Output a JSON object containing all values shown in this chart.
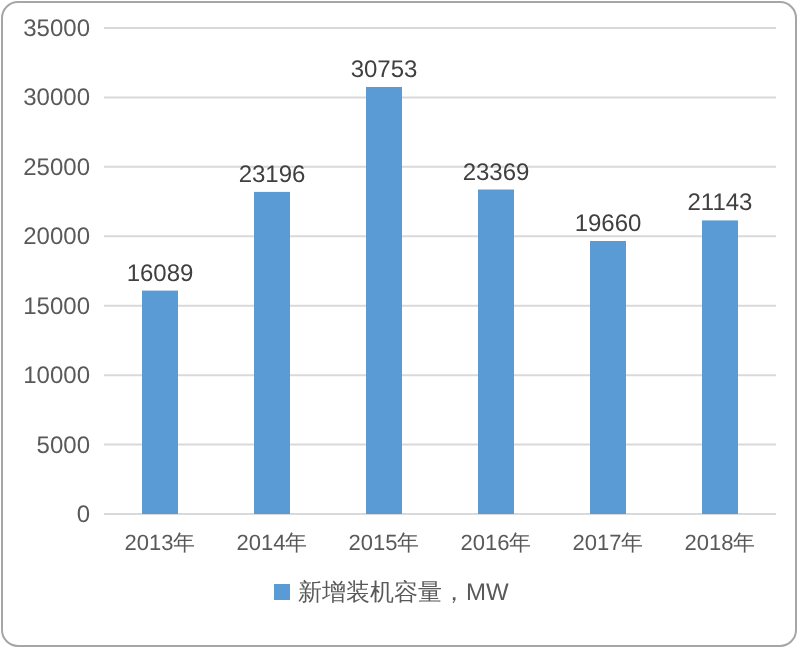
{
  "chart_data": {
    "type": "bar",
    "categories": [
      "2013年",
      "2014年",
      "2015年",
      "2016年",
      "2017年",
      "2018年"
    ],
    "series": [
      {
        "name": "新增装机容量，MW",
        "color": "#5b9bd5",
        "values": [
          16089,
          23196,
          30753,
          23369,
          19660,
          21143
        ]
      }
    ],
    "ylim": [
      0,
      35000
    ],
    "yticks": [
      0,
      5000,
      10000,
      15000,
      20000,
      25000,
      30000,
      35000
    ],
    "grid": "y",
    "legend": "bottom",
    "data_labels": true
  }
}
